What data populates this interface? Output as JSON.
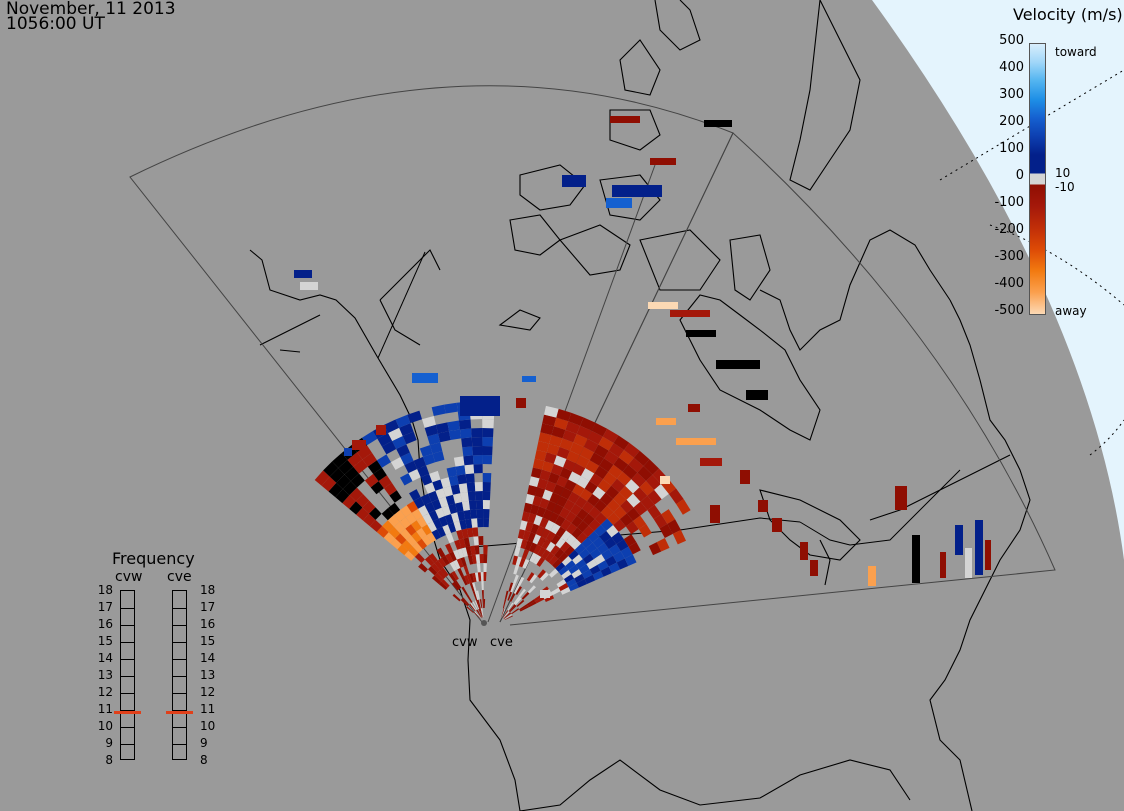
{
  "header": {
    "date": "November, 11 2013",
    "time": "1056:00 UT"
  },
  "colorbar": {
    "title": "Velocity (m/s)",
    "ticks": [
      "500",
      "400",
      "300",
      "200",
      "100",
      "0",
      "-100",
      "-200",
      "-300",
      "-400",
      "-500"
    ],
    "label_toward": "toward",
    "label_away": "away",
    "label_pos": "10",
    "label_neg": "-10",
    "colors_toward": [
      "#d8eefc",
      "#9fd6f8",
      "#52b4f0",
      "#1e8fe6",
      "#1560d0",
      "#0d3fb0",
      "#03208a"
    ],
    "colors_away": [
      "#8f0e02",
      "#a4180a",
      "#c02e08",
      "#dd4a06",
      "#f27a10",
      "#fba04e",
      "#fcd9b4"
    ],
    "ground_scatter": "#d4d4d4"
  },
  "frequency": {
    "title": "Frequency",
    "radars": [
      "cvw",
      "cve"
    ],
    "scale": [
      "18",
      "17",
      "16",
      "15",
      "14",
      "13",
      "12",
      "11",
      "10",
      "9",
      "8"
    ],
    "cvw_mhz": 10.8,
    "cve_mhz": 10.8
  },
  "sites": {
    "cvw": "cvw",
    "cve": "cve"
  }
}
